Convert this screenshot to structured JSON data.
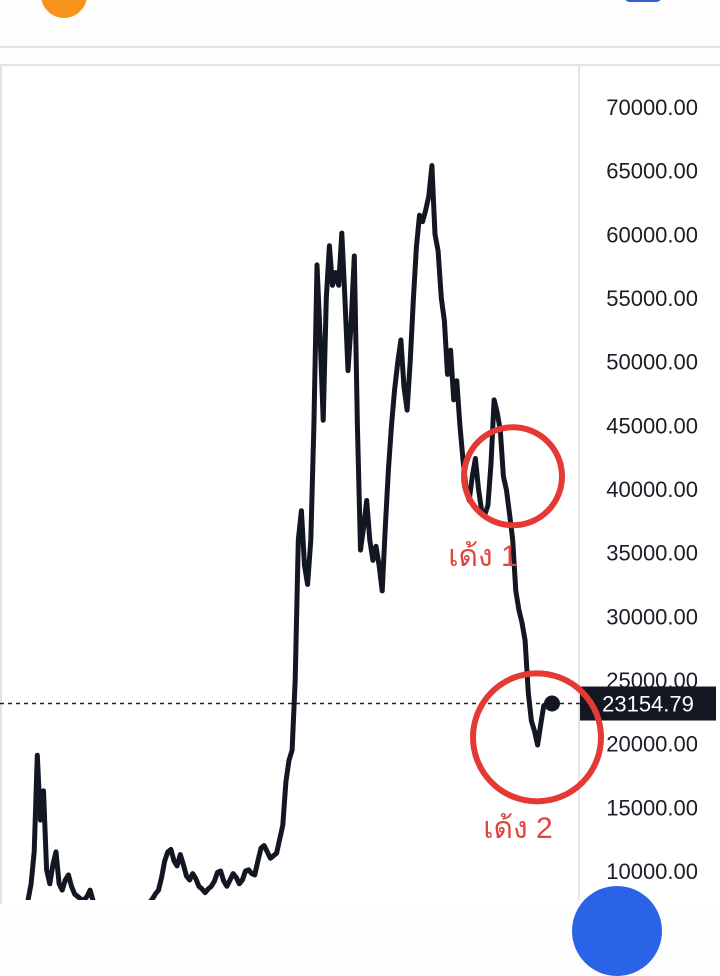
{
  "chart_data": {
    "type": "line",
    "title": "",
    "xlabel": "",
    "ylabel": "",
    "ylim": [
      7000,
      72000
    ],
    "grid": false,
    "y_ticks": [
      "70000.00",
      "65000.00",
      "60000.00",
      "55000.00",
      "50000.00",
      "45000.00",
      "40000.00",
      "35000.00",
      "30000.00",
      "25000.00",
      "20000.00",
      "15000.00",
      "10000.00"
    ],
    "y_tick_values": [
      70000,
      65000,
      60000,
      55000,
      50000,
      45000,
      40000,
      35000,
      30000,
      25000,
      20000,
      15000,
      10000
    ],
    "line_color": "#131722",
    "values": [
      7700,
      9000,
      11500,
      19100,
      14000,
      16300,
      10100,
      9000,
      10500,
      11500,
      9000,
      8500,
      9300,
      9700,
      8800,
      8200,
      8000,
      7800,
      7700,
      8000,
      8500,
      7600,
      7200,
      7000,
      6900,
      6800,
      6700,
      6600,
      6500,
      6400,
      6300,
      6300,
      6400,
      6500,
      6600,
      6800,
      6900,
      7000,
      7200,
      7500,
      7800,
      8200,
      8500,
      9500,
      10800,
      11500,
      11700,
      10800,
      10400,
      11300,
      10500,
      9600,
      9300,
      9800,
      9400,
      8800,
      8600,
      8300,
      8600,
      8800,
      9200,
      9900,
      10000,
      9200,
      8800,
      9300,
      9800,
      9500,
      9000,
      9300,
      10000,
      10100,
      9800,
      9700,
      10800,
      11800,
      12000,
      11500,
      11000,
      11200,
      11400,
      12500,
      13600,
      17000,
      18700,
      19500,
      25000,
      36000,
      38300,
      34000,
      32500,
      36000,
      45000,
      57600,
      52000,
      45400,
      55000,
      59100,
      56000,
      57000,
      56000,
      60100,
      55000,
      49300,
      53000,
      58300,
      45000,
      35200,
      37000,
      39100,
      36000,
      34400,
      35500,
      34000,
      32000,
      37000,
      41500,
      45000,
      47800,
      50000,
      51700,
      48000,
      46200,
      50000,
      54800,
      59000,
      61500,
      61000,
      61900,
      63000,
      65400,
      60000,
      58700,
      55000,
      53200,
      49000,
      50900,
      47000,
      48500,
      45000,
      42300,
      40000,
      39100,
      41000,
      42400,
      40000,
      38300,
      38000,
      38700,
      42000,
      47000,
      46000,
      44600,
      41000,
      39900,
      38000,
      36000,
      32000,
      30500,
      29500,
      28100,
      24000,
      21800,
      21000,
      19900,
      21500,
      23000,
      23100,
      23154.79
    ],
    "current_price": 23154.79,
    "current_price_label": "23154.79",
    "annotations": [
      {
        "label": "เด้ง 1",
        "value": 41000,
        "color": "#e53935"
      },
      {
        "label": "เด้ง 2",
        "value": 20500,
        "color": "#e53935"
      }
    ]
  },
  "colors": {
    "accent": "#f7931a",
    "button": "#2f5fd0",
    "fab": "#2a62e8",
    "annotation": "#e53935"
  }
}
